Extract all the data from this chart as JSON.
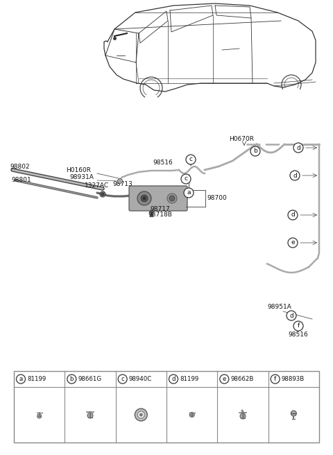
{
  "bg_color": "#ffffff",
  "line_color": "#555555",
  "tube_color": "#aaaaaa",
  "parts_color": "#666666",
  "table_border_color": "#888888",
  "label_items": [
    {
      "letter": "a",
      "code": "81199"
    },
    {
      "letter": "b",
      "code": "98661G"
    },
    {
      "letter": "c",
      "code": "98940C"
    },
    {
      "letter": "d",
      "code": "81199"
    },
    {
      "letter": "e",
      "code": "98662B"
    },
    {
      "letter": "f",
      "code": "98893B"
    }
  ],
  "part_labels_left": [
    "98802",
    "98801",
    "H0160R",
    "98931A",
    "1327AC",
    "98713"
  ],
  "part_labels_right": [
    "H0670R",
    "98516",
    "98700",
    "98717",
    "98718B",
    "98951A",
    "98516"
  ]
}
